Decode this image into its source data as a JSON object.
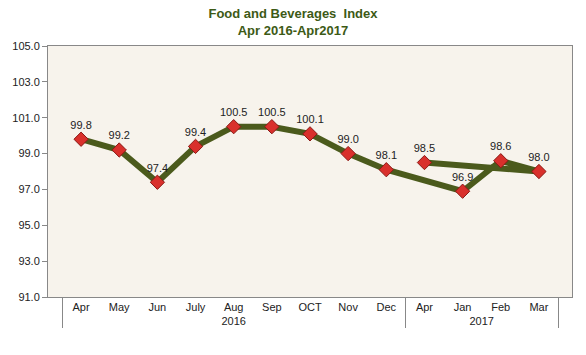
{
  "chart_data": {
    "type": "line",
    "title": "Food and Beverages  Index",
    "subtitle": "Apr 2016-Apr2017",
    "categories": [
      "Apr",
      "May",
      "Jun",
      "July",
      "Aug",
      "Sep",
      "OCT",
      "Nov",
      "Dec",
      "Jan",
      "Feb",
      "Mar",
      "Apr"
    ],
    "groups": [
      {
        "label": "2016",
        "count": 9
      },
      {
        "label": "2017",
        "count": 4
      }
    ],
    "values": [
      99.8,
      99.2,
      97.4,
      99.4,
      100.5,
      100.5,
      100.1,
      99.0,
      98.1,
      96.9,
      98.6,
      98.0,
      98.5
    ],
    "value_labels": [
      "99.8",
      "99.2",
      "97.4",
      "99.4",
      "100.5",
      "100.5",
      "100.1",
      "99.0",
      "98.1",
      "96.9",
      "98.6",
      "98.0",
      "98.5"
    ],
    "color": "#4b5a1c",
    "marker": "diamond",
    "line_style": "solid",
    "data_labels": true,
    "grid": false,
    "ylim": [
      91,
      105
    ],
    "yticks": [
      {
        "value": 91,
        "label": "91.0"
      },
      {
        "value": 93,
        "label": "93.0"
      },
      {
        "value": 95,
        "label": "95.0"
      },
      {
        "value": 97,
        "label": "97.0"
      },
      {
        "value": 99,
        "label": "99.0"
      },
      {
        "value": 101,
        "label": "101.0"
      },
      {
        "value": 103,
        "label": "103.0"
      },
      {
        "value": 105,
        "label": "105.0"
      }
    ]
  }
}
